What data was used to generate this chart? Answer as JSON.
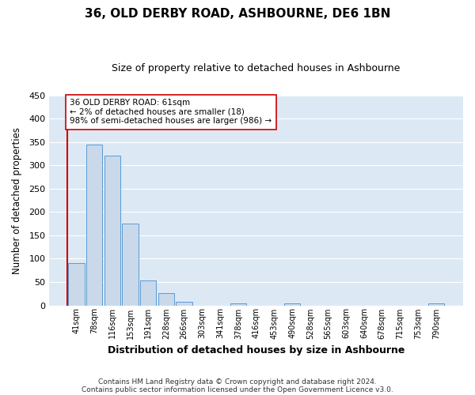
{
  "title": "36, OLD DERBY ROAD, ASHBOURNE, DE6 1BN",
  "subtitle": "Size of property relative to detached houses in Ashbourne",
  "xlabel": "Distribution of detached houses by size in Ashbourne",
  "ylabel": "Number of detached properties",
  "bar_labels": [
    "41sqm",
    "78sqm",
    "116sqm",
    "153sqm",
    "191sqm",
    "228sqm",
    "266sqm",
    "303sqm",
    "341sqm",
    "378sqm",
    "416sqm",
    "453sqm",
    "490sqm",
    "528sqm",
    "565sqm",
    "603sqm",
    "640sqm",
    "678sqm",
    "715sqm",
    "753sqm",
    "790sqm"
  ],
  "bar_values": [
    90,
    345,
    320,
    175,
    54,
    26,
    8,
    0,
    0,
    5,
    0,
    0,
    5,
    0,
    0,
    0,
    0,
    0,
    0,
    0,
    4
  ],
  "bar_color": "#c9d9ea",
  "bar_edge_color": "#5b9bd5",
  "plot_bg_color": "#dce9f5",
  "grid_color": "#ffffff",
  "fig_bg_color": "#ffffff",
  "ylim": [
    0,
    450
  ],
  "yticks": [
    0,
    50,
    100,
    150,
    200,
    250,
    300,
    350,
    400,
    450
  ],
  "property_line_color": "#cc0000",
  "annotation_line1": "36 OLD DERBY ROAD: 61sqm",
  "annotation_line2": "← 2% of detached houses are smaller (18)",
  "annotation_line3": "98% of semi-detached houses are larger (986) →",
  "annotation_box_color": "#ffffff",
  "annotation_box_edge_color": "#cc0000",
  "footer_line1": "Contains HM Land Registry data © Crown copyright and database right 2024.",
  "footer_line2": "Contains public sector information licensed under the Open Government Licence v3.0."
}
